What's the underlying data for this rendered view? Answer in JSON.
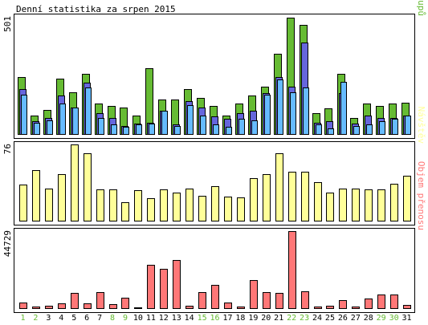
{
  "chart_data": {
    "type": "bar",
    "title": "Denní statistika za srpen 2015",
    "categories": [
      "1",
      "2",
      "3",
      "4",
      "5",
      "6",
      "7",
      "8",
      "9",
      "10",
      "11",
      "12",
      "13",
      "14",
      "15",
      "16",
      "17",
      "18",
      "19",
      "20",
      "21",
      "22",
      "23",
      "24",
      "25",
      "26",
      "27",
      "28",
      "29",
      "30",
      "31"
    ],
    "weekend_days": [
      "1",
      "2",
      "8",
      "9",
      "15",
      "16",
      "22",
      "23",
      "29",
      "30"
    ],
    "colors": {
      "pristupu": "#66bb33",
      "souboru": "#6666dd",
      "stranek": "#66bbff",
      "navstev": "#ffff99",
      "objem": "#ff7777",
      "weekend_label": "#66bb33",
      "weekday_label": "#000000"
    },
    "panels": [
      {
        "id": "traffic",
        "max_label": "501",
        "max_value": 501,
        "legend": [
          {
            "key": "pristupu",
            "text": "Přístupů"
          },
          {
            "key": "souboru",
            "text": "Souborů"
          },
          {
            "key": "stranek",
            "text": "Stránek"
          }
        ],
        "series": [
          {
            "name": "Přístupů",
            "key": "pristupu",
            "values": [
              245,
              80,
              105,
              240,
              180,
              260,
              130,
              120,
              115,
              80,
              285,
              150,
              150,
              195,
              155,
              120,
              80,
              130,
              165,
              205,
              345,
              501,
              470,
              90,
              110,
              260,
              70,
              130,
              120,
              130,
              135
            ]
          },
          {
            "name": "Souborů",
            "key": "souboru",
            "values": [
              195,
              55,
              70,
              165,
              115,
              220,
              90,
              70,
              35,
              45,
              50,
              100,
              40,
              140,
              115,
              75,
              65,
              90,
              100,
              175,
              245,
              205,
              395,
              50,
              55,
              175,
              45,
              80,
              70,
              70,
              80
            ]
          },
          {
            "name": "Stránek",
            "key": "stranek",
            "values": [
              170,
              50,
              60,
              130,
              115,
              200,
              70,
              40,
              30,
              40,
              45,
              100,
              35,
              125,
              80,
              40,
              30,
              65,
              60,
              170,
              235,
              180,
              200,
              40,
              25,
              225,
              35,
              40,
              55,
              65,
              80
            ]
          }
        ]
      },
      {
        "id": "visits",
        "max_label": "76",
        "max_value": 76,
        "legend": [
          {
            "key": "navstev",
            "text": "Návštěv"
          }
        ],
        "series": [
          {
            "name": "Návštěv",
            "key": "navstev",
            "values": [
              36,
              50,
              32,
              46,
              76,
              67,
              31,
              31,
              18,
              30,
              22,
              31,
              28,
              32,
              25,
              34,
              24,
              23,
              42,
              46,
              67,
              49,
              49,
              38,
              28,
              32,
              32,
              31,
              31,
              37,
              45
            ]
          }
        ]
      },
      {
        "id": "volume",
        "max_label": "44729",
        "max_value": 44729,
        "legend": [
          {
            "key": "objem",
            "text": "Objem přenosu"
          }
        ],
        "series": [
          {
            "name": "Objem přenosu",
            "key": "objem",
            "values": [
              3200,
              1100,
              1500,
              2800,
              9000,
              2600,
              9500,
              2400,
              6200,
              600,
              25000,
              22900,
              28000,
              1200,
              9300,
              13400,
              3200,
              1000,
              16500,
              9200,
              8900,
              44729,
              9800,
              1100,
              1300,
              4600,
              1000,
              5600,
              8100,
              8100,
              1800
            ]
          }
        ]
      }
    ]
  }
}
